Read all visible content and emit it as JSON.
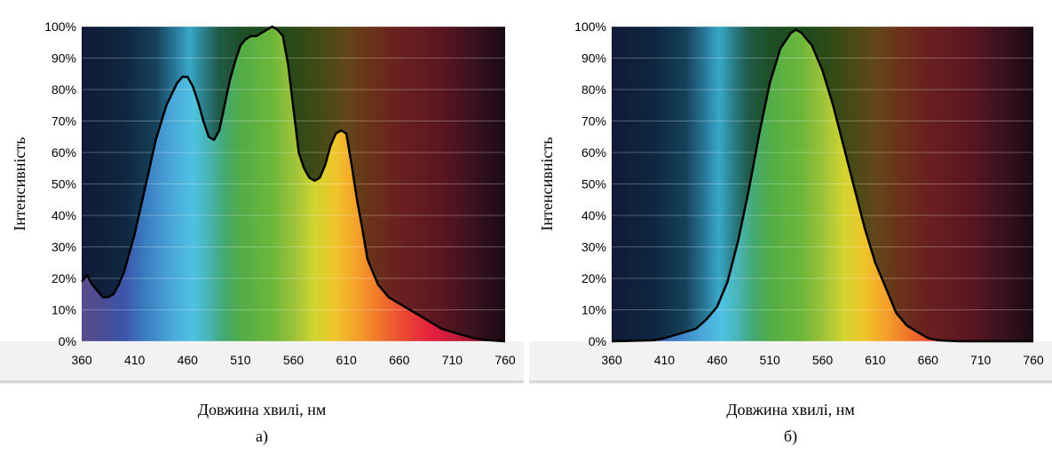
{
  "chart_data": [
    {
      "type": "area",
      "caption": "а)",
      "xlabel": "Довжина хвилі, нм",
      "ylabel": "Інтенсивність",
      "x_ticks": [
        "360",
        "410",
        "460",
        "510",
        "560",
        "610",
        "660",
        "710",
        "760"
      ],
      "y_ticks": [
        "0%",
        "10%",
        "20%",
        "30%",
        "40%",
        "50%",
        "60%",
        "70%",
        "80%",
        "90%",
        "100%"
      ],
      "xlim": [
        360,
        760
      ],
      "ylim": [
        0,
        100
      ],
      "grid": true,
      "series": [
        {
          "x": [
            360,
            365,
            370,
            375,
            380,
            385,
            390,
            395,
            400,
            410,
            420,
            430,
            440,
            450,
            455,
            460,
            465,
            470,
            475,
            480,
            485,
            490,
            495,
            500,
            505,
            510,
            515,
            520,
            525,
            530,
            535,
            540,
            545,
            550,
            555,
            560,
            565,
            570,
            575,
            580,
            585,
            590,
            595,
            600,
            605,
            610,
            615,
            620,
            625,
            630,
            640,
            650,
            660,
            670,
            680,
            690,
            700,
            710,
            720,
            730,
            740,
            750,
            760
          ],
          "y": [
            19,
            21,
            18,
            16,
            14,
            14,
            15,
            18,
            22,
            34,
            49,
            64,
            75,
            82,
            84,
            84,
            81,
            76,
            70,
            65,
            64,
            67,
            75,
            83,
            89,
            94,
            96,
            97,
            97,
            98,
            99,
            100,
            99,
            97,
            88,
            74,
            60,
            55,
            52,
            51,
            52,
            56,
            62,
            66,
            67,
            66,
            56,
            45,
            36,
            26,
            18,
            14,
            12,
            10,
            8,
            6,
            4,
            3,
            2,
            1,
            0.5,
            0.2,
            0
          ]
        }
      ]
    },
    {
      "type": "area",
      "caption": "б)",
      "xlabel": "Довжина хвилі, нм",
      "ylabel": "Інтенсивність",
      "x_ticks": [
        "360",
        "410",
        "460",
        "510",
        "560",
        "610",
        "660",
        "710",
        "760"
      ],
      "y_ticks": [
        "0%",
        "10%",
        "20%",
        "30%",
        "40%",
        "50%",
        "60%",
        "70%",
        "80%",
        "90%",
        "100%"
      ],
      "xlim": [
        360,
        760
      ],
      "ylim": [
        0,
        100
      ],
      "grid": true,
      "series": [
        {
          "x": [
            360,
            400,
            410,
            420,
            430,
            440,
            450,
            460,
            470,
            480,
            490,
            500,
            510,
            520,
            530,
            535,
            540,
            550,
            560,
            570,
            580,
            590,
            600,
            610,
            620,
            630,
            640,
            650,
            660,
            670,
            690,
            710,
            760
          ],
          "y": [
            0,
            0.3,
            1,
            2,
            3,
            4,
            7,
            11,
            19,
            32,
            48,
            66,
            82,
            93,
            98,
            99,
            98,
            94,
            86,
            75,
            62,
            49,
            36,
            25,
            17,
            9,
            5,
            3,
            1,
            0.3,
            0,
            0,
            0
          ]
        }
      ]
    }
  ]
}
